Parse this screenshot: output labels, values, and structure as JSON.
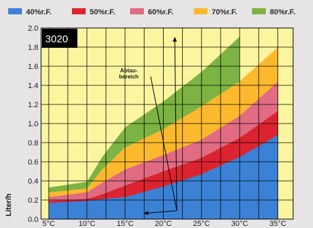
{
  "chart_data": {
    "type": "area",
    "badge": "3020",
    "title": "",
    "xlabel": "",
    "ylabel": "Liter/h",
    "x": [
      5,
      10,
      12,
      15,
      20,
      25,
      30,
      35
    ],
    "x_ticks": [
      5,
      10,
      15,
      20,
      25,
      30,
      35
    ],
    "x_tick_labels": [
      "5°C",
      "10°C",
      "15°C",
      "20°C",
      "25°C",
      "30°C",
      "35°C"
    ],
    "xlim": [
      4,
      37
    ],
    "ylim": [
      0,
      2.0
    ],
    "y_ticks": [
      0.0,
      0.2,
      0.4,
      0.6,
      0.8,
      1.0,
      1.2,
      1.4,
      1.6,
      1.8,
      2.0
    ],
    "y_tick_labels": [
      "0.0",
      "0.2",
      "0.4",
      "0.6",
      "0.8",
      "1.0",
      "1.2",
      "1.4",
      "1.6",
      "1.8",
      "2.0"
    ],
    "grid": true,
    "legend_position": "top",
    "series": [
      {
        "name": "40%r.F.",
        "color": "#3b82d6",
        "values": [
          0.17,
          0.19,
          0.21,
          0.23,
          0.34,
          0.47,
          0.65,
          0.88
        ]
      },
      {
        "name": "50%r.F.",
        "color": "#dc2430",
        "values": [
          0.19,
          0.21,
          0.26,
          0.35,
          0.5,
          0.64,
          0.85,
          1.13
        ]
      },
      {
        "name": "60%r.F.",
        "color": "#e06b82",
        "values": [
          0.23,
          0.28,
          0.38,
          0.52,
          0.67,
          0.83,
          1.08,
          1.44
        ]
      },
      {
        "name": "70%r.F.",
        "color": "#fdb92d",
        "values": [
          0.28,
          0.32,
          0.52,
          0.75,
          0.94,
          1.18,
          1.44,
          1.8
        ]
      },
      {
        "name": "80%r.F.",
        "color": "#7cb342",
        "values": [
          0.33,
          0.39,
          0.65,
          0.96,
          1.23,
          1.54,
          1.91,
          null
        ]
      }
    ],
    "annotation": {
      "text_lines": [
        "Abtau-",
        "bereich"
      ],
      "arrow_targets": [
        [
          21.5,
          1.9
        ],
        [
          17.5,
          0.06
        ]
      ]
    }
  }
}
